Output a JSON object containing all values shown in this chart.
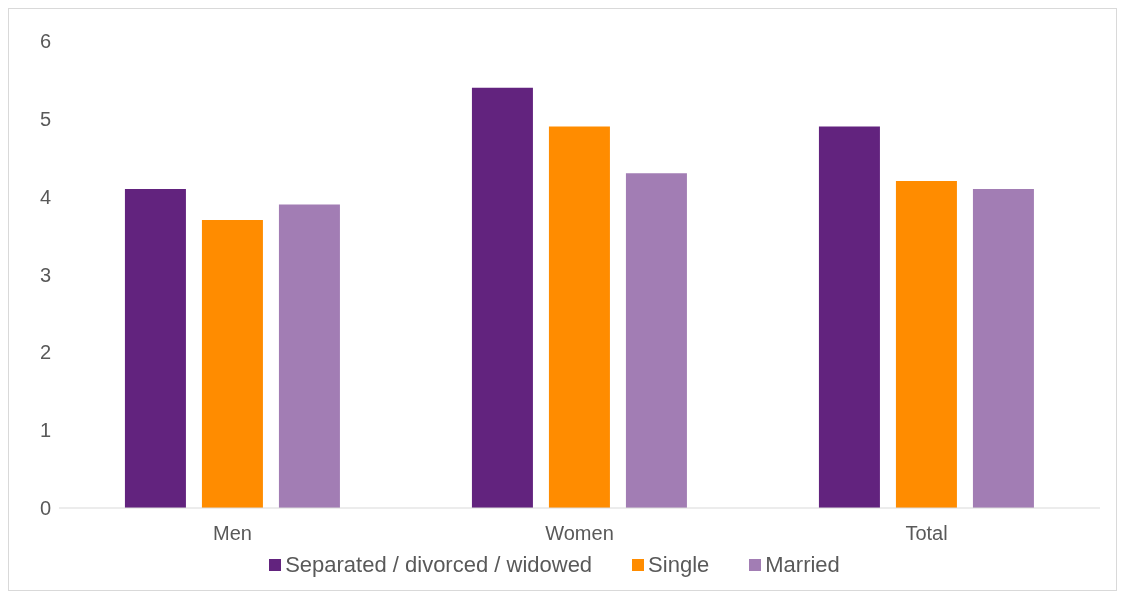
{
  "chart_data": {
    "type": "bar",
    "categories": [
      "Men",
      "Women",
      "Total"
    ],
    "series": [
      {
        "name": "Separated / divorced / widowed",
        "color": "#62237e",
        "values": [
          4.1,
          5.4,
          4.9
        ]
      },
      {
        "name": "Single",
        "color": "#ff8c00",
        "values": [
          3.7,
          4.9,
          4.2
        ]
      },
      {
        "name": "Married",
        "color": "#a27db4",
        "values": [
          3.9,
          4.3,
          4.1
        ]
      }
    ],
    "ylim": [
      0,
      6
    ],
    "yticks": [
      0,
      1,
      2,
      3,
      4,
      5,
      6
    ],
    "grid": false,
    "legend": "bottom"
  }
}
